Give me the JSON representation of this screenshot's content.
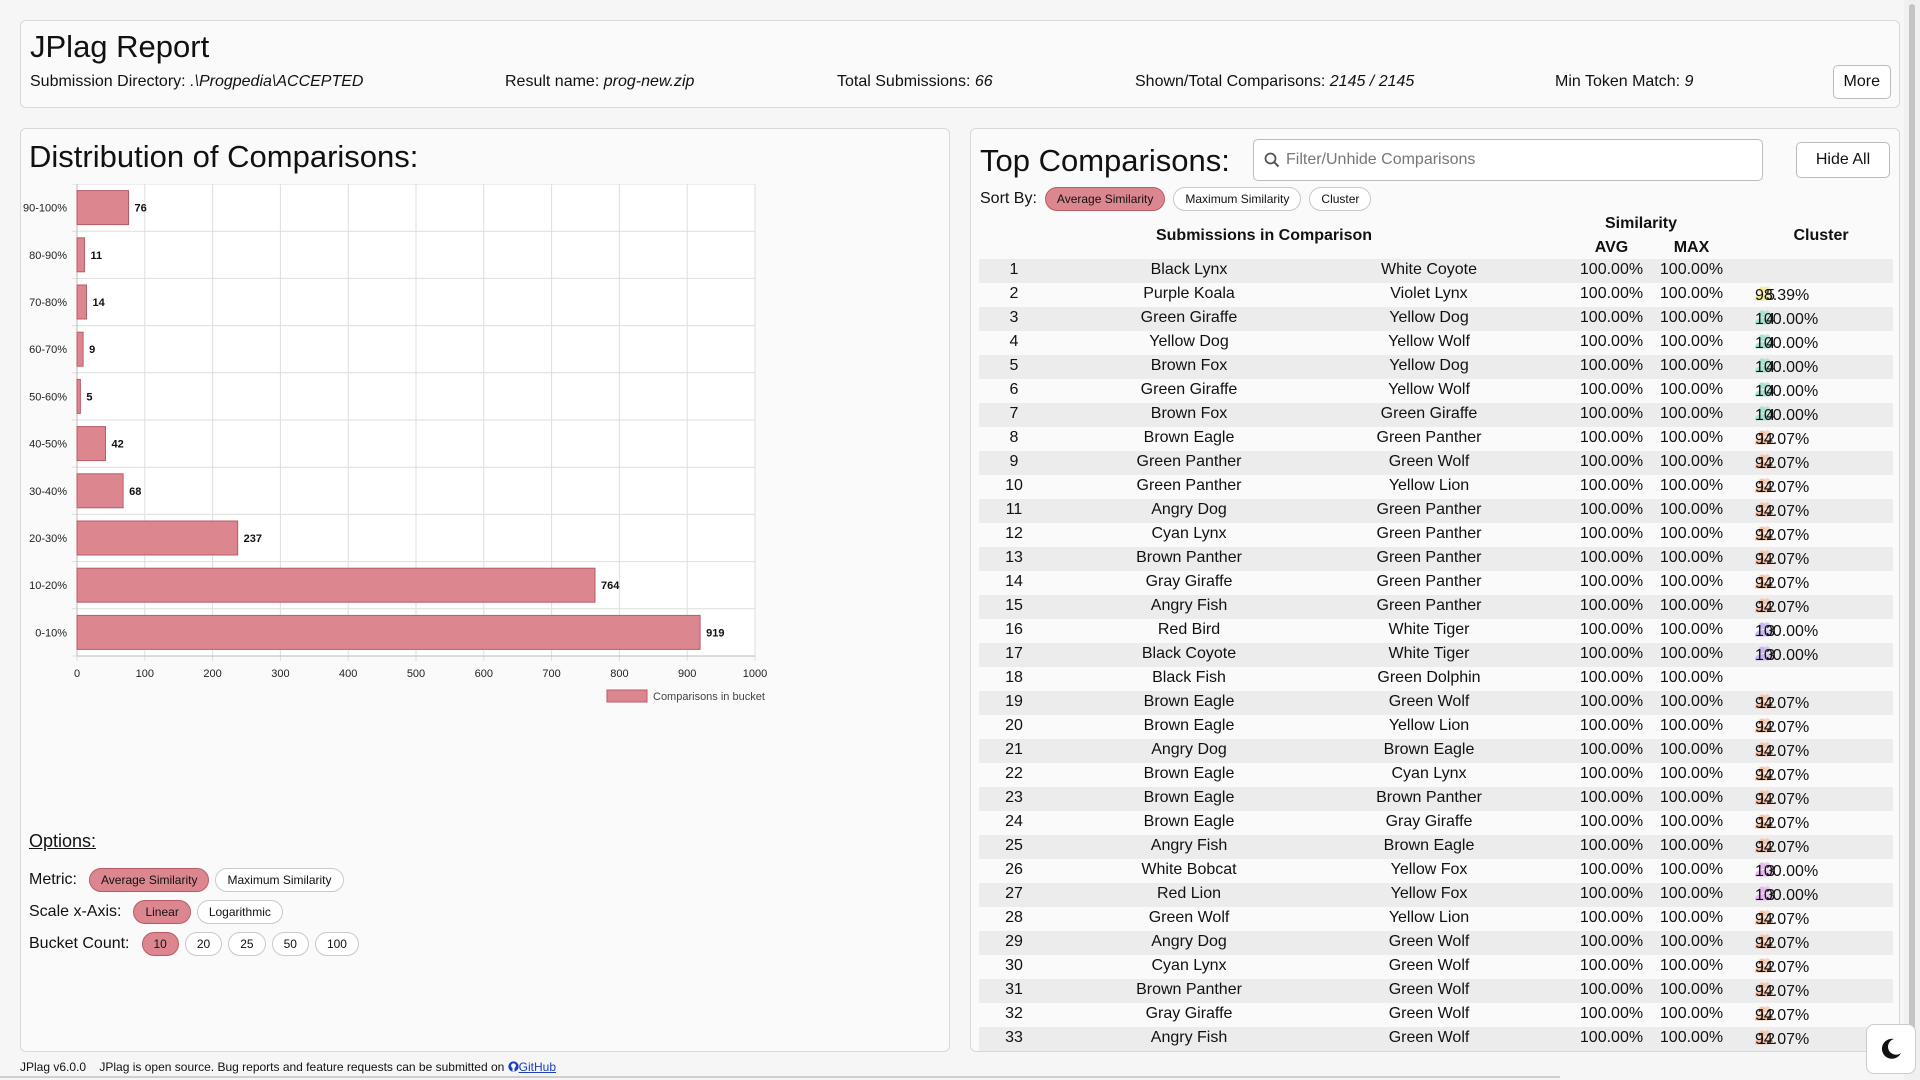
{
  "header": {
    "title": "JPlag Report",
    "submission_dir_label": "Submission Directory:",
    "submission_dir_value": ".\\Progpedia\\ACCEPTED",
    "result_name_label": "Result name:",
    "result_name_value": "prog-new.zip",
    "total_submissions_label": "Total Submissions:",
    "total_submissions_value": "66",
    "comparisons_label": "Shown/Total Comparisons:",
    "comparisons_value": "2145 / 2145",
    "min_token_label": "Min Token Match:",
    "min_token_value": "9",
    "more_button": "More"
  },
  "distribution": {
    "title": "Distribution of Comparisons:",
    "options_title": "Options:",
    "metric_label": "Metric:",
    "metric_options": [
      "Average Similarity",
      "Maximum Similarity"
    ],
    "metric_selected": "Average Similarity",
    "scale_label": "Scale x-Axis:",
    "scale_options": [
      "Linear",
      "Logarithmic"
    ],
    "scale_selected": "Linear",
    "bucket_label": "Bucket Count:",
    "bucket_options": [
      "10",
      "20",
      "25",
      "50",
      "100"
    ],
    "bucket_selected": "10"
  },
  "chart_data": {
    "type": "bar",
    "orientation": "horizontal",
    "categories": [
      "90-100%",
      "80-90%",
      "70-80%",
      "60-70%",
      "50-60%",
      "40-50%",
      "30-40%",
      "20-30%",
      "10-20%",
      "0-10%"
    ],
    "series": [
      {
        "name": "Comparisons in bucket",
        "values": [
          76,
          11,
          14,
          9,
          5,
          42,
          68,
          237,
          764,
          919
        ]
      }
    ],
    "xlim": [
      0,
      1000
    ],
    "xticks": [
      0,
      100,
      200,
      300,
      400,
      500,
      600,
      700,
      800,
      900,
      1000
    ],
    "grid": true,
    "legend_position": "bottom-right",
    "bar_color": "#dc8790",
    "bar_border": "#b95b66"
  },
  "top_comparisons": {
    "title": "Top Comparisons:",
    "search_placeholder": "Filter/Unhide Comparisons",
    "hide_all_button": "Hide All",
    "sort_label": "Sort By:",
    "sort_options": [
      "Average Similarity",
      "Maximum Similarity",
      "Cluster"
    ],
    "sort_selected": "Average Similarity",
    "headers": {
      "submissions": "Submissions in Comparison",
      "similarity": "Similarity",
      "avg": "AVG",
      "max": "MAX",
      "cluster": "Cluster"
    },
    "rows": [
      {
        "idx": "1",
        "a": "Black Lynx",
        "b": "White Coyote",
        "avg": "100.00%",
        "max": "100.00%",
        "cluster_count": "",
        "cluster_sim": "",
        "cluster_color": ""
      },
      {
        "idx": "2",
        "a": "Purple Koala",
        "b": "Violet Lynx",
        "avg": "100.00%",
        "max": "100.00%",
        "cluster_count": "5",
        "cluster_sim": "98.39%",
        "cluster_color": "#f2e9a0"
      },
      {
        "idx": "3",
        "a": "Green Giraffe",
        "b": "Yellow Dog",
        "avg": "100.00%",
        "max": "100.00%",
        "cluster_count": "4",
        "cluster_sim": "100.00%",
        "cluster_color": "#a8e0d2"
      },
      {
        "idx": "4",
        "a": "Yellow Dog",
        "b": "Yellow Wolf",
        "avg": "100.00%",
        "max": "100.00%",
        "cluster_count": "4",
        "cluster_sim": "100.00%",
        "cluster_color": "#a8e0d2"
      },
      {
        "idx": "5",
        "a": "Brown Fox",
        "b": "Yellow Dog",
        "avg": "100.00%",
        "max": "100.00%",
        "cluster_count": "4",
        "cluster_sim": "100.00%",
        "cluster_color": "#a8e0d2"
      },
      {
        "idx": "6",
        "a": "Green Giraffe",
        "b": "Yellow Wolf",
        "avg": "100.00%",
        "max": "100.00%",
        "cluster_count": "4",
        "cluster_sim": "100.00%",
        "cluster_color": "#a8e0d2"
      },
      {
        "idx": "7",
        "a": "Brown Fox",
        "b": "Green Giraffe",
        "avg": "100.00%",
        "max": "100.00%",
        "cluster_count": "4",
        "cluster_sim": "100.00%",
        "cluster_color": "#a8e0d2"
      },
      {
        "idx": "8",
        "a": "Brown Eagle",
        "b": "Green Panther",
        "avg": "100.00%",
        "max": "100.00%",
        "cluster_count": "12",
        "cluster_sim": "94.07%",
        "cluster_color": "#f5c3a8"
      },
      {
        "idx": "9",
        "a": "Green Panther",
        "b": "Green Wolf",
        "avg": "100.00%",
        "max": "100.00%",
        "cluster_count": "12",
        "cluster_sim": "94.07%",
        "cluster_color": "#f5c3a8"
      },
      {
        "idx": "10",
        "a": "Green Panther",
        "b": "Yellow Lion",
        "avg": "100.00%",
        "max": "100.00%",
        "cluster_count": "12",
        "cluster_sim": "94.07%",
        "cluster_color": "#f5c3a8"
      },
      {
        "idx": "11",
        "a": "Angry Dog",
        "b": "Green Panther",
        "avg": "100.00%",
        "max": "100.00%",
        "cluster_count": "12",
        "cluster_sim": "94.07%",
        "cluster_color": "#f5c3a8"
      },
      {
        "idx": "12",
        "a": "Cyan Lynx",
        "b": "Green Panther",
        "avg": "100.00%",
        "max": "100.00%",
        "cluster_count": "12",
        "cluster_sim": "94.07%",
        "cluster_color": "#f5c3a8"
      },
      {
        "idx": "13",
        "a": "Brown Panther",
        "b": "Green Panther",
        "avg": "100.00%",
        "max": "100.00%",
        "cluster_count": "12",
        "cluster_sim": "94.07%",
        "cluster_color": "#f5c3a8"
      },
      {
        "idx": "14",
        "a": "Gray Giraffe",
        "b": "Green Panther",
        "avg": "100.00%",
        "max": "100.00%",
        "cluster_count": "12",
        "cluster_sim": "94.07%",
        "cluster_color": "#f5c3a8"
      },
      {
        "idx": "15",
        "a": "Angry Fish",
        "b": "Green Panther",
        "avg": "100.00%",
        "max": "100.00%",
        "cluster_count": "12",
        "cluster_sim": "94.07%",
        "cluster_color": "#f5c3a8"
      },
      {
        "idx": "16",
        "a": "Red Bird",
        "b": "White Tiger",
        "avg": "100.00%",
        "max": "100.00%",
        "cluster_count": "3",
        "cluster_sim": "100.00%",
        "cluster_color": "#c9b8ee"
      },
      {
        "idx": "17",
        "a": "Black Coyote",
        "b": "White Tiger",
        "avg": "100.00%",
        "max": "100.00%",
        "cluster_count": "3",
        "cluster_sim": "100.00%",
        "cluster_color": "#c9b8ee"
      },
      {
        "idx": "18",
        "a": "Black Fish",
        "b": "Green Dolphin",
        "avg": "100.00%",
        "max": "100.00%",
        "cluster_count": "",
        "cluster_sim": "",
        "cluster_color": ""
      },
      {
        "idx": "19",
        "a": "Brown Eagle",
        "b": "Green Wolf",
        "avg": "100.00%",
        "max": "100.00%",
        "cluster_count": "12",
        "cluster_sim": "94.07%",
        "cluster_color": "#f5c3a8"
      },
      {
        "idx": "20",
        "a": "Brown Eagle",
        "b": "Yellow Lion",
        "avg": "100.00%",
        "max": "100.00%",
        "cluster_count": "12",
        "cluster_sim": "94.07%",
        "cluster_color": "#f5c3a8"
      },
      {
        "idx": "21",
        "a": "Angry Dog",
        "b": "Brown Eagle",
        "avg": "100.00%",
        "max": "100.00%",
        "cluster_count": "12",
        "cluster_sim": "94.07%",
        "cluster_color": "#f5c3a8"
      },
      {
        "idx": "22",
        "a": "Brown Eagle",
        "b": "Cyan Lynx",
        "avg": "100.00%",
        "max": "100.00%",
        "cluster_count": "12",
        "cluster_sim": "94.07%",
        "cluster_color": "#f5c3a8"
      },
      {
        "idx": "23",
        "a": "Brown Eagle",
        "b": "Brown Panther",
        "avg": "100.00%",
        "max": "100.00%",
        "cluster_count": "12",
        "cluster_sim": "94.07%",
        "cluster_color": "#f5c3a8"
      },
      {
        "idx": "24",
        "a": "Brown Eagle",
        "b": "Gray Giraffe",
        "avg": "100.00%",
        "max": "100.00%",
        "cluster_count": "12",
        "cluster_sim": "94.07%",
        "cluster_color": "#f5c3a8"
      },
      {
        "idx": "25",
        "a": "Angry Fish",
        "b": "Brown Eagle",
        "avg": "100.00%",
        "max": "100.00%",
        "cluster_count": "12",
        "cluster_sim": "94.07%",
        "cluster_color": "#f5c3a8"
      },
      {
        "idx": "26",
        "a": "White Bobcat",
        "b": "Yellow Fox",
        "avg": "100.00%",
        "max": "100.00%",
        "cluster_count": "3",
        "cluster_sim": "100.00%",
        "cluster_color": "#e6b8ee"
      },
      {
        "idx": "27",
        "a": "Red Lion",
        "b": "Yellow Fox",
        "avg": "100.00%",
        "max": "100.00%",
        "cluster_count": "3",
        "cluster_sim": "100.00%",
        "cluster_color": "#e6b8ee"
      },
      {
        "idx": "28",
        "a": "Green Wolf",
        "b": "Yellow Lion",
        "avg": "100.00%",
        "max": "100.00%",
        "cluster_count": "12",
        "cluster_sim": "94.07%",
        "cluster_color": "#f5c3a8"
      },
      {
        "idx": "29",
        "a": "Angry Dog",
        "b": "Green Wolf",
        "avg": "100.00%",
        "max": "100.00%",
        "cluster_count": "12",
        "cluster_sim": "94.07%",
        "cluster_color": "#f5c3a8"
      },
      {
        "idx": "30",
        "a": "Cyan Lynx",
        "b": "Green Wolf",
        "avg": "100.00%",
        "max": "100.00%",
        "cluster_count": "12",
        "cluster_sim": "94.07%",
        "cluster_color": "#f5c3a8"
      },
      {
        "idx": "31",
        "a": "Brown Panther",
        "b": "Green Wolf",
        "avg": "100.00%",
        "max": "100.00%",
        "cluster_count": "12",
        "cluster_sim": "94.07%",
        "cluster_color": "#f5c3a8"
      },
      {
        "idx": "32",
        "a": "Gray Giraffe",
        "b": "Green Wolf",
        "avg": "100.00%",
        "max": "100.00%",
        "cluster_count": "12",
        "cluster_sim": "94.07%",
        "cluster_color": "#f5c3a8"
      },
      {
        "idx": "33",
        "a": "Angry Fish",
        "b": "Green Wolf",
        "avg": "100.00%",
        "max": "100.00%",
        "cluster_count": "12",
        "cluster_sim": "94.07%",
        "cluster_color": "#f5c3a8"
      }
    ]
  },
  "footer": {
    "version": "JPlag v6.0.0",
    "text": "JPlag is open source. Bug reports and feature requests can be submitted on",
    "link": "GitHub"
  },
  "icons": {
    "search": "search-icon",
    "github": "github-icon",
    "dark_mode": "moon-icon",
    "cluster": "users-icon"
  }
}
